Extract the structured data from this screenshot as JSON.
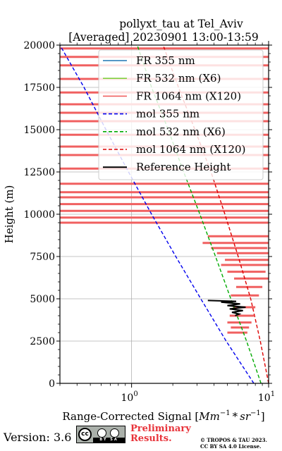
{
  "chart_data": {
    "type": "line",
    "title_line1": "pollyxt_tau at Tel_Aviv",
    "title_line2": "[Averaged] 20230901 13:00-13:59",
    "xlabel_prefix": "Range-Corrected Signal [",
    "xlabel_math": "Mm",
    "xlabel_exp1": "−1",
    "xlabel_mid": " * sr",
    "xlabel_exp2": "−1",
    "xlabel_suffix": "]",
    "ylabel": "Height (m)",
    "x_scale": "log",
    "xlim": [
      0.3,
      10
    ],
    "ylim": [
      0,
      20000
    ],
    "x_ticks": [
      {
        "value": 1,
        "base": "10",
        "exp": "0"
      },
      {
        "value": 10,
        "base": "10",
        "exp": "1"
      }
    ],
    "y_ticks": [
      {
        "value": 0,
        "label": "0"
      },
      {
        "value": 2500,
        "label": "2500"
      },
      {
        "value": 5000,
        "label": "5000"
      },
      {
        "value": 7500,
        "label": "7500"
      },
      {
        "value": 10000,
        "label": "10000"
      },
      {
        "value": 12500,
        "label": "12500"
      },
      {
        "value": 15000,
        "label": "15000"
      },
      {
        "value": 17500,
        "label": "17500"
      },
      {
        "value": 20000,
        "label": "20000"
      }
    ],
    "grid": true,
    "legend_position": "top-right",
    "legend": [
      {
        "label": "FR 355 nm",
        "color": "#1f77b4",
        "style": "solid"
      },
      {
        "label": "FR 532 nm (X6)",
        "color": "#80d040",
        "style": "solid"
      },
      {
        "label": "FR 1064 nm (X120)",
        "color": "#f06060",
        "style": "solid"
      },
      {
        "label": "mol 355 nm",
        "color": "#0000ee",
        "style": "dashed"
      },
      {
        "label": "mol 532 nm (X6)",
        "color": "#00aa00",
        "style": "dashed"
      },
      {
        "label": "mol 1064 nm (X120)",
        "color": "#dd0000",
        "style": "dashed"
      },
      {
        "label": "Reference Height",
        "color": "#000000",
        "style": "solid"
      }
    ],
    "series": [
      {
        "name": "mol 355 nm",
        "color": "#0000ee",
        "style": "dashed",
        "points": [
          [
            7.8,
            0
          ],
          [
            4.9,
            2500
          ],
          [
            3.2,
            5000
          ],
          [
            2.1,
            7500
          ],
          [
            1.4,
            10000
          ],
          [
            0.95,
            12500
          ],
          [
            0.65,
            15000
          ],
          [
            0.45,
            17500
          ],
          [
            0.3,
            20000
          ]
        ]
      },
      {
        "name": "mol 532 nm (X6)",
        "color": "#00aa00",
        "style": "dashed",
        "points": [
          [
            8.8,
            0
          ],
          [
            6.9,
            2500
          ],
          [
            5.3,
            5000
          ],
          [
            4.1,
            7500
          ],
          [
            3.15,
            10000
          ],
          [
            2.4,
            12500
          ],
          [
            1.85,
            15000
          ],
          [
            1.4,
            17500
          ],
          [
            1.1,
            20000
          ]
        ]
      },
      {
        "name": "mol 1064 nm (X120)",
        "color": "#dd0000",
        "style": "dashed",
        "points": [
          [
            10.0,
            0
          ],
          [
            8.7,
            2500
          ],
          [
            7.4,
            5000
          ],
          [
            6.0,
            7500
          ],
          [
            4.8,
            10000
          ],
          [
            3.8,
            12500
          ],
          [
            2.9,
            15000
          ],
          [
            2.2,
            17500
          ],
          [
            1.7,
            20000
          ]
        ]
      }
    ],
    "fr1064_profile": {
      "name": "FR 1064 nm (X120)",
      "color": "#f06060",
      "rows": [
        {
          "y": 3000,
          "x0": 5.0,
          "x1": 7.0
        },
        {
          "y": 3300,
          "x0": 5.3,
          "x1": 7.2
        },
        {
          "y": 3600,
          "x0": 5.0,
          "x1": 7.5
        },
        {
          "y": 4000,
          "x0": 5.2,
          "x1": 7.8
        },
        {
          "y": 4500,
          "x0": 5.5,
          "x1": 8.0
        },
        {
          "y": 5200,
          "x0": 5.3,
          "x1": 8.5
        },
        {
          "y": 5700,
          "x0": 5.8,
          "x1": 9.0
        },
        {
          "y": 6200,
          "x0": 5.6,
          "x1": 10.0
        },
        {
          "y": 6600,
          "x0": 5.0,
          "x1": 9.5
        },
        {
          "y": 7000,
          "x0": 4.5,
          "x1": 10.0
        },
        {
          "y": 7300,
          "x0": 4.8,
          "x1": 10.0
        },
        {
          "y": 7700,
          "x0": 4.2,
          "x1": 10.0
        },
        {
          "y": 8000,
          "x0": 3.8,
          "x1": 9.8
        },
        {
          "y": 8300,
          "x0": 3.3,
          "x1": 10.0
        },
        {
          "y": 8700,
          "x0": 3.6,
          "x1": 10.0
        },
        {
          "y": 9500,
          "x0": 0.3,
          "x1": 10.0
        },
        {
          "y": 9800,
          "x0": 0.3,
          "x1": 10.0
        },
        {
          "y": 10200,
          "x0": 0.3,
          "x1": 10.0
        },
        {
          "y": 10600,
          "x0": 0.3,
          "x1": 10.0
        },
        {
          "y": 11000,
          "x0": 0.3,
          "x1": 10.0
        },
        {
          "y": 11300,
          "x0": 0.3,
          "x1": 10.0
        },
        {
          "y": 11800,
          "x0": 0.3,
          "x1": 10.0
        },
        {
          "y": 12700,
          "x0": 0.3,
          "x1": 10.0
        },
        {
          "y": 13500,
          "x0": 0.3,
          "x1": 10.0
        },
        {
          "y": 14000,
          "x0": 0.3,
          "x1": 10.0
        },
        {
          "y": 14700,
          "x0": 0.3,
          "x1": 10.0
        },
        {
          "y": 15500,
          "x0": 0.3,
          "x1": 10.0
        },
        {
          "y": 16000,
          "x0": 0.3,
          "x1": 10.0
        },
        {
          "y": 16500,
          "x0": 0.3,
          "x1": 10.0
        },
        {
          "y": 17200,
          "x0": 0.3,
          "x1": 10.0
        },
        {
          "y": 18000,
          "x0": 0.3,
          "x1": 10.0
        },
        {
          "y": 18800,
          "x0": 0.3,
          "x1": 10.0
        },
        {
          "y": 19300,
          "x0": 0.3,
          "x1": 10.0
        },
        {
          "y": 19800,
          "x0": 0.3,
          "x1": 10.0
        }
      ]
    },
    "reference_height": {
      "name": "Reference Height",
      "color": "#000000",
      "points": [
        [
          3.6,
          4900
        ],
        [
          5.8,
          4850
        ],
        [
          4.5,
          4800
        ],
        [
          6.2,
          4700
        ],
        [
          5.0,
          4600
        ],
        [
          6.8,
          4500
        ],
        [
          5.2,
          4400
        ],
        [
          6.5,
          4300
        ],
        [
          5.4,
          4200
        ],
        [
          6.1,
          4100
        ],
        [
          5.7,
          4000
        ]
      ]
    }
  },
  "footer": {
    "version": "Version: 3.6",
    "cc_left": "cc",
    "cc_strip": "BY  SA",
    "prelim_line1": "Preliminary",
    "prelim_line2": "Results.",
    "copyright_line1": "© TROPOS & TAU 2023.",
    "copyright_line2": "CC BY SA 4.0 License."
  }
}
